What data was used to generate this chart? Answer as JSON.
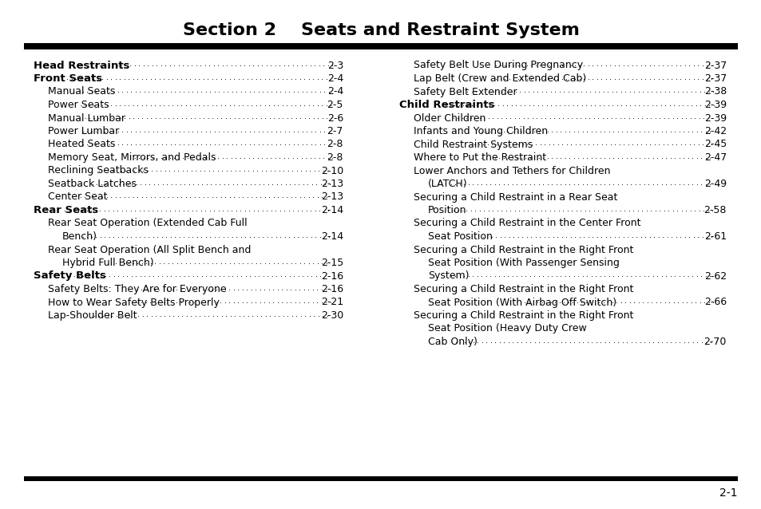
{
  "title": "Section 2    Seats and Restraint System",
  "background_color": "#ffffff",
  "text_color": "#000000",
  "left_entries": [
    {
      "text": "Head Restraints",
      "bold": true,
      "indent": 0,
      "page": "2-3",
      "dots": true
    },
    {
      "text": "Front Seats",
      "bold": true,
      "indent": 0,
      "page": "2-4",
      "dots": true
    },
    {
      "text": "Manual Seats",
      "bold": false,
      "indent": 1,
      "page": "2-4",
      "dots": true
    },
    {
      "text": "Power Seats",
      "bold": false,
      "indent": 1,
      "page": "2-5",
      "dots": true
    },
    {
      "text": "Manual Lumbar",
      "bold": false,
      "indent": 1,
      "page": "2-6",
      "dots": true
    },
    {
      "text": "Power Lumbar",
      "bold": false,
      "indent": 1,
      "page": "2-7",
      "dots": true
    },
    {
      "text": "Heated Seats",
      "bold": false,
      "indent": 1,
      "page": "2-8",
      "dots": true
    },
    {
      "text": "Memory Seat, Mirrors, and Pedals",
      "bold": false,
      "indent": 1,
      "page": "2-8",
      "dots": true
    },
    {
      "text": "Reclining Seatbacks",
      "bold": false,
      "indent": 1,
      "page": "2-10",
      "dots": true
    },
    {
      "text": "Seatback Latches",
      "bold": false,
      "indent": 1,
      "page": "2-13",
      "dots": true
    },
    {
      "text": "Center Seat",
      "bold": false,
      "indent": 1,
      "page": "2-13",
      "dots": true
    },
    {
      "text": "Rear Seats",
      "bold": true,
      "indent": 0,
      "page": "2-14",
      "dots": true
    },
    {
      "text": "Rear Seat Operation (Extended Cab Full",
      "bold": false,
      "indent": 1,
      "page": "",
      "dots": false
    },
    {
      "text": "Bench)",
      "bold": false,
      "indent": 2,
      "page": "2-14",
      "dots": true
    },
    {
      "text": "Rear Seat Operation (All Split Bench and",
      "bold": false,
      "indent": 1,
      "page": "",
      "dots": false
    },
    {
      "text": "Hybrid Full Bench)",
      "bold": false,
      "indent": 2,
      "page": "2-15",
      "dots": true
    },
    {
      "text": "Safety Belts",
      "bold": true,
      "indent": 0,
      "page": "2-16",
      "dots": true
    },
    {
      "text": "Safety Belts: They Are for Everyone",
      "bold": false,
      "indent": 1,
      "page": "2-16",
      "dots": true
    },
    {
      "text": "How to Wear Safety Belts Properly",
      "bold": false,
      "indent": 1,
      "page": "2-21",
      "dots": true
    },
    {
      "text": "Lap-Shoulder Belt",
      "bold": false,
      "indent": 1,
      "page": "2-30",
      "dots": true
    }
  ],
  "right_entries": [
    {
      "text": "Safety Belt Use During Pregnancy",
      "bold": false,
      "indent": 1,
      "page": "2-37",
      "dots": true
    },
    {
      "text": "Lap Belt (Crew and Extended Cab)",
      "bold": false,
      "indent": 1,
      "page": "2-37",
      "dots": true
    },
    {
      "text": "Safety Belt Extender",
      "bold": false,
      "indent": 1,
      "page": "2-38",
      "dots": true
    },
    {
      "text": "Child Restraints",
      "bold": true,
      "indent": 0,
      "page": "2-39",
      "dots": true
    },
    {
      "text": "Older Children",
      "bold": false,
      "indent": 1,
      "page": "2-39",
      "dots": true
    },
    {
      "text": "Infants and Young Children",
      "bold": false,
      "indent": 1,
      "page": "2-42",
      "dots": true
    },
    {
      "text": "Child Restraint Systems",
      "bold": false,
      "indent": 1,
      "page": "2-45",
      "dots": true
    },
    {
      "text": "Where to Put the Restraint",
      "bold": false,
      "indent": 1,
      "page": "2-47",
      "dots": true
    },
    {
      "text": "Lower Anchors and Tethers for Children",
      "bold": false,
      "indent": 1,
      "page": "",
      "dots": false
    },
    {
      "text": "(LATCH)",
      "bold": false,
      "indent": 2,
      "page": "2-49",
      "dots": true
    },
    {
      "text": "Securing a Child Restraint in a Rear Seat",
      "bold": false,
      "indent": 1,
      "page": "",
      "dots": false
    },
    {
      "text": "Position",
      "bold": false,
      "indent": 2,
      "page": "2-58",
      "dots": true
    },
    {
      "text": "Securing a Child Restraint in the Center Front",
      "bold": false,
      "indent": 1,
      "page": "",
      "dots": false
    },
    {
      "text": "Seat Position",
      "bold": false,
      "indent": 2,
      "page": "2-61",
      "dots": true
    },
    {
      "text": "Securing a Child Restraint in the Right Front",
      "bold": false,
      "indent": 1,
      "page": "",
      "dots": false
    },
    {
      "text": "Seat Position (With Passenger Sensing",
      "bold": false,
      "indent": 2,
      "page": "",
      "dots": false
    },
    {
      "text": "System)",
      "bold": false,
      "indent": 2,
      "page": "2-62",
      "dots": true
    },
    {
      "text": "Securing a Child Restraint in the Right Front",
      "bold": false,
      "indent": 1,
      "page": "",
      "dots": false
    },
    {
      "text": "Seat Position (With Airbag Off Switch)",
      "bold": false,
      "indent": 2,
      "page": "2-66",
      "dots": true
    },
    {
      "text": "Securing a Child Restraint in the Right Front",
      "bold": false,
      "indent": 1,
      "page": "",
      "dots": false
    },
    {
      "text": "Seat Position (Heavy Duty Crew",
      "bold": false,
      "indent": 2,
      "page": "",
      "dots": false
    },
    {
      "text": "Cab Only)",
      "bold": false,
      "indent": 2,
      "page": "2-70",
      "dots": true
    }
  ],
  "footer_page": "2-1",
  "header_bar_color": "#000000",
  "footer_bar_color": "#000000"
}
